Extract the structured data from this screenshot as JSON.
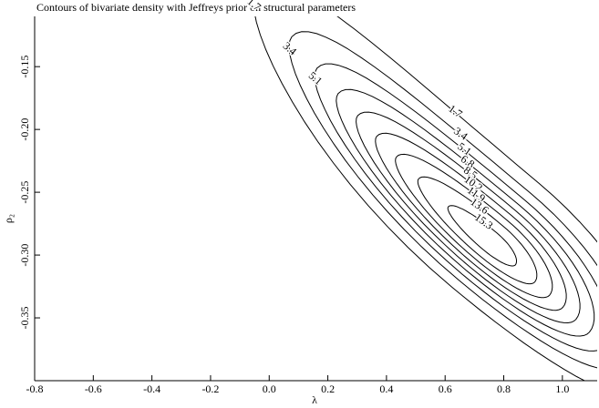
{
  "chart_data": {
    "type": "contour",
    "title": "Contours of bivariate density with Jeffreys prior on structural parameters",
    "x_label": "λ",
    "y_label": "ρ₂",
    "levels": [
      1.7,
      3.4,
      5.1,
      6.8,
      8.5,
      10.2,
      11.9,
      13.6,
      15.3
    ],
    "color": "#000000",
    "xlim": [
      -0.8,
      1.1
    ],
    "xticks": [
      -0.8,
      -0.6,
      -0.4,
      -0.2,
      {
        "value": 0,
        "label": "0.0"
      },
      0.2,
      0.4,
      0.6,
      0.8,
      {
        "value": 1,
        "label": "1.0"
      }
    ],
    "ylim": [
      -0.4,
      -0.11
    ],
    "yticks": [
      -0.35,
      {
        "value": -0.3,
        "label": "-0.30"
      },
      -0.25,
      {
        "value": -0.2,
        "label": "-0.20"
      },
      -0.15
    ]
  }
}
